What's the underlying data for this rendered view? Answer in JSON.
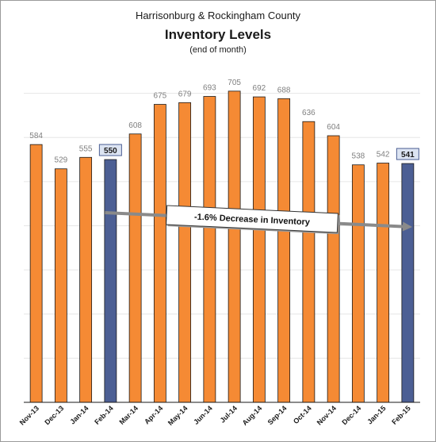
{
  "chart_data": {
    "type": "bar",
    "title_line1": "Harrisonburg & Rockingham County",
    "title": "Inventory Levels",
    "subtitle": "(end of month)",
    "categories": [
      "Nov-13",
      "Dec-13",
      "Jan-14",
      "Feb-14",
      "Mar-14",
      "Apr-14",
      "May-14",
      "Jun-14",
      "Jul-14",
      "Aug-14",
      "Sep-14",
      "Oct-14",
      "Nov-14",
      "Dec-14",
      "Jan-15",
      "Feb-15"
    ],
    "values": [
      584,
      529,
      555,
      550,
      608,
      675,
      679,
      693,
      705,
      692,
      688,
      636,
      604,
      538,
      542,
      541
    ],
    "highlighted": [
      "Feb-14",
      "Feb-15"
    ],
    "ylim": [
      0,
      800
    ],
    "grid": true,
    "colors": {
      "bar": "#f58a34",
      "highlight": "#4c5f94",
      "label_box": "#dce4f2",
      "grid": "#e6e6e6",
      "arrow": "#8a8a8a"
    },
    "annotation": "-1.6% Decrease in Inventory"
  }
}
